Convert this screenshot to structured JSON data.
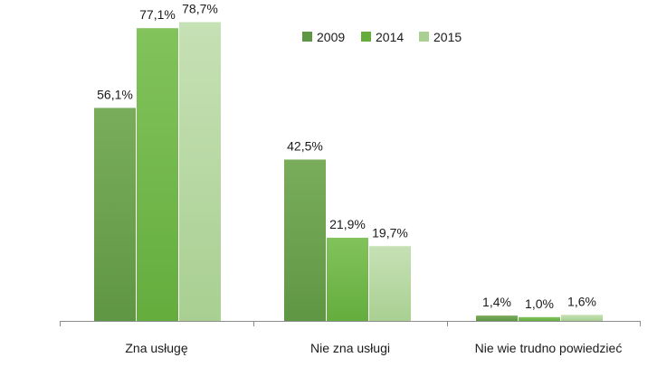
{
  "chart_data": {
    "type": "bar",
    "title": "",
    "xlabel": "",
    "ylabel": "",
    "ylim": [
      0,
      80
    ],
    "grid": false,
    "legend_position": "top-right",
    "categories": [
      "Zna usługę",
      "Nie zna usługi",
      "Nie wie trudno powiedzieć"
    ],
    "series": [
      {
        "name": "2009",
        "values": [
          56.1,
          42.5,
          1.4
        ],
        "labels": [
          "56,1%",
          "42,5%",
          "1,4%"
        ],
        "color": "#5f9644",
        "color_light": "#79ad5b"
      },
      {
        "name": "2014",
        "values": [
          77.1,
          21.9,
          1.0
        ],
        "labels": [
          "77,1%",
          "21,9%",
          "1,0%"
        ],
        "color": "#64ad3d",
        "color_light": "#82c35c"
      },
      {
        "name": "2015",
        "values": [
          78.7,
          19.7,
          1.6
        ],
        "labels": [
          "78,7%",
          "19,7%",
          "1,6%"
        ],
        "color": "#a9cf92",
        "color_light": "#c6e1b5"
      }
    ]
  }
}
